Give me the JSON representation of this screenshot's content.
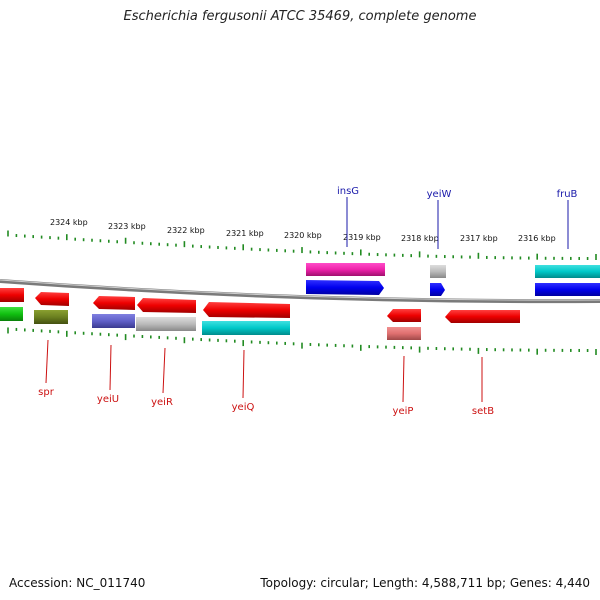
{
  "title": "Escherichia fergusonii ATCC 35469, complete genome",
  "footer": {
    "accession": "Accession: NC_011740",
    "summary": "Topology: circular; Length: 4,588,711 bp; Genes: 4,440"
  },
  "scale": {
    "ticks": [
      {
        "label": "2324 kbp"
      },
      {
        "label": "2323 kbp"
      },
      {
        "label": "2322 kbp"
      },
      {
        "label": "2321 kbp"
      },
      {
        "label": "2320 kbp"
      },
      {
        "label": "2319 kbp"
      },
      {
        "label": "2318 kbp"
      },
      {
        "label": "2317 kbp"
      },
      {
        "label": "2316 kbp"
      }
    ]
  },
  "genes": {
    "labeled": [
      {
        "name": "insG",
        "strand": "forward",
        "color": "#1a1aaa"
      },
      {
        "name": "yeiW",
        "strand": "forward",
        "color": "#1a1aaa"
      },
      {
        "name": "fruB",
        "strand": "forward",
        "color": "#1a1aaa"
      },
      {
        "name": "spr",
        "strand": "reverse",
        "color": "#cc1111"
      },
      {
        "name": "yeiU",
        "strand": "reverse",
        "color": "#cc1111"
      },
      {
        "name": "yeiR",
        "strand": "reverse",
        "color": "#cc1111"
      },
      {
        "name": "yeiQ",
        "strand": "reverse",
        "color": "#cc1111"
      },
      {
        "name": "yeiP",
        "strand": "reverse",
        "color": "#cc1111"
      },
      {
        "name": "setB",
        "strand": "reverse",
        "color": "#cc1111"
      }
    ]
  },
  "colors": {
    "forward_cds": "#0000ee",
    "reverse_cds": "#ee0000",
    "ticks": "#228b22",
    "backbone": "#888888"
  }
}
